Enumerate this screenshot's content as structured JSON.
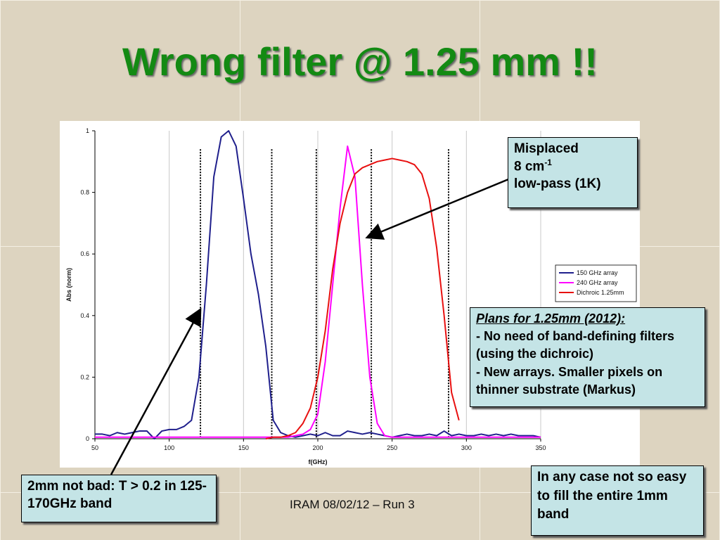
{
  "slide": {
    "title": "Wrong filter @ 1.25 mm !!",
    "footer": "IRAM 08/02/12 – Run 3",
    "misplaced": {
      "line1": "Misplaced",
      "line2": "8 cm",
      "line2_sup": "-1",
      "line3": "low-pass (1K)"
    },
    "plans": {
      "heading": "Plans for 1.25mm (2012):",
      "items": [
        "- No need of band-defining filters (using the dichroic)",
        "- New arrays. Smaller pixels on thinner substrate (Markus)"
      ]
    },
    "note_2mm": "2mm not bad: T > 0.2 in 125-170GHz band",
    "note_1mm": "In any case not so easy to fill the entire 1mm band"
  },
  "chart_data": {
    "type": "line",
    "xlabel": "f(GHz)",
    "ylabel": "Abs (norm)",
    "xlim": [
      50,
      350
    ],
    "xticks": [
      50,
      100,
      150,
      200,
      250,
      300,
      350
    ],
    "ylim": [
      0,
      1
    ],
    "yticks": [
      0,
      0.2,
      0.4,
      0.6,
      0.8,
      1
    ],
    "grid": "x",
    "legend": "right",
    "vlines": [
      121,
      169,
      199,
      236,
      288
    ],
    "x": [
      50,
      55,
      60,
      65,
      70,
      75,
      80,
      85,
      90,
      95,
      100,
      105,
      110,
      115,
      120,
      125,
      130,
      135,
      140,
      145,
      150,
      155,
      160,
      165,
      170,
      175,
      180,
      185,
      190,
      195,
      200,
      205,
      210,
      215,
      220,
      225,
      230,
      235,
      240,
      245,
      250,
      255,
      260,
      265,
      270,
      275,
      280,
      285,
      290,
      295,
      300,
      305,
      310,
      315,
      320,
      325,
      330,
      335,
      340,
      345,
      350
    ],
    "series": [
      {
        "name": "150 GHz array",
        "color": "#1f1f8c",
        "values": [
          0.015,
          0.015,
          0.01,
          0.02,
          0.015,
          0.02,
          0.025,
          0.025,
          0.0,
          0.025,
          0.03,
          0.03,
          0.04,
          0.06,
          0.2,
          0.5,
          0.85,
          0.98,
          1.0,
          0.95,
          0.78,
          0.6,
          0.47,
          0.3,
          0.06,
          0.02,
          0.01,
          0.005,
          0.01,
          0.015,
          0.01,
          0.02,
          0.01,
          0.01,
          0.025,
          0.02,
          0.015,
          0.02,
          0.015,
          0.01,
          0.005,
          0.01,
          0.015,
          0.01,
          0.01,
          0.015,
          0.01,
          0.025,
          0.01,
          0.015,
          0.01,
          0.01,
          0.015,
          0.01,
          0.015,
          0.01,
          0.015,
          0.01,
          0.01,
          0.01,
          0.005
        ]
      },
      {
        "name": "240 GHz array",
        "color": "#ff00ff",
        "values": [
          0.005,
          0.005,
          0.005,
          0.005,
          0.005,
          0.005,
          0.005,
          0.005,
          0.005,
          0.005,
          0.005,
          0.005,
          0.005,
          0.005,
          0.005,
          0.005,
          0.005,
          0.005,
          0.005,
          0.005,
          0.005,
          0.005,
          0.005,
          0.005,
          0.005,
          0.005,
          0.005,
          0.01,
          0.015,
          0.03,
          0.08,
          0.25,
          0.5,
          0.75,
          0.95,
          0.85,
          0.5,
          0.2,
          0.05,
          0.01,
          0.005,
          0.005,
          0.005,
          0.005,
          0.005,
          0.005,
          0.005,
          0.005,
          0.005,
          0.005,
          0.005,
          0.005,
          0.005,
          0.005,
          0.005,
          0.005,
          0.005,
          0.005,
          0.005,
          0.005,
          0.005
        ]
      },
      {
        "name": "Dichroic 1.25mm",
        "color": "#e81010",
        "values": [
          null,
          null,
          null,
          null,
          null,
          null,
          null,
          null,
          null,
          null,
          null,
          null,
          null,
          null,
          null,
          null,
          null,
          null,
          null,
          null,
          null,
          null,
          null,
          0.0,
          0.005,
          0.005,
          0.01,
          0.02,
          0.05,
          0.1,
          0.2,
          0.35,
          0.55,
          0.7,
          0.8,
          0.86,
          0.88,
          0.89,
          0.9,
          0.905,
          0.91,
          0.905,
          0.9,
          0.89,
          0.86,
          0.78,
          0.62,
          0.4,
          0.15,
          0.06,
          null,
          null,
          null,
          null,
          null,
          null,
          null,
          null,
          null,
          null,
          null
        ]
      }
    ]
  }
}
